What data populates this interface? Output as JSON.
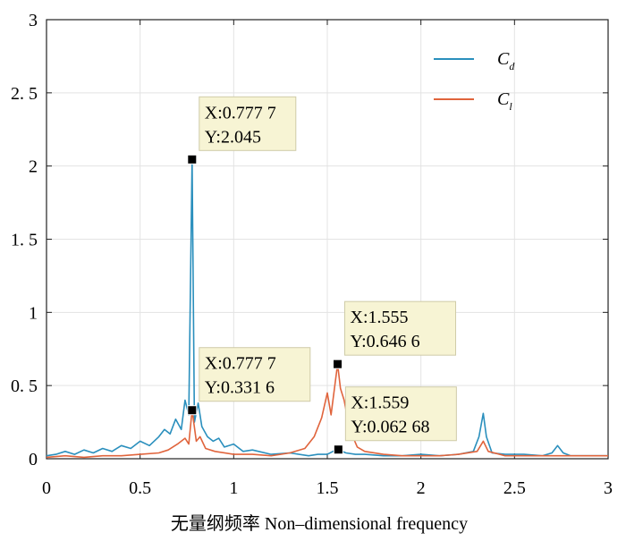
{
  "chart_data": {
    "type": "line",
    "title": "",
    "xlabel": "无量纲频率 Non–dimensional frequency",
    "ylabel": "",
    "xlim": [
      0,
      3
    ],
    "ylim": [
      0,
      3
    ],
    "xticks": [
      0,
      0.5,
      1,
      1.5,
      2,
      2.5,
      3
    ],
    "xtick_labels": [
      "0",
      "0.5",
      "1",
      "1.5",
      "2",
      "2.5",
      "3"
    ],
    "yticks": [
      0,
      0.5,
      1,
      1.5,
      2,
      2.5,
      3
    ],
    "ytick_labels": [
      "0",
      "0. 5",
      "1",
      "1. 5",
      "2",
      "2. 5",
      "3"
    ],
    "grid": true,
    "legend_position": "top-right",
    "series": [
      {
        "name": "Cd",
        "name_main": "C",
        "name_sub": "d",
        "color": "#2a8fbd",
        "x": [
          0,
          0.05,
          0.1,
          0.15,
          0.2,
          0.25,
          0.3,
          0.35,
          0.4,
          0.45,
          0.5,
          0.55,
          0.6,
          0.63,
          0.66,
          0.69,
          0.72,
          0.74,
          0.76,
          0.7777,
          0.79,
          0.81,
          0.83,
          0.86,
          0.89,
          0.92,
          0.95,
          1.0,
          1.05,
          1.1,
          1.2,
          1.3,
          1.4,
          1.45,
          1.5,
          1.53,
          1.559,
          1.58,
          1.6,
          1.65,
          1.7,
          1.8,
          1.9,
          2.0,
          2.1,
          2.2,
          2.28,
          2.31,
          2.333,
          2.35,
          2.38,
          2.45,
          2.55,
          2.65,
          2.7,
          2.73,
          2.76,
          2.8,
          2.9,
          3.0
        ],
        "y": [
          0.02,
          0.03,
          0.05,
          0.03,
          0.06,
          0.04,
          0.07,
          0.05,
          0.09,
          0.07,
          0.12,
          0.09,
          0.15,
          0.2,
          0.17,
          0.27,
          0.2,
          0.4,
          0.3,
          2.045,
          0.25,
          0.38,
          0.22,
          0.15,
          0.12,
          0.14,
          0.08,
          0.1,
          0.05,
          0.06,
          0.03,
          0.04,
          0.02,
          0.03,
          0.03,
          0.05,
          0.06268,
          0.05,
          0.04,
          0.03,
          0.03,
          0.02,
          0.02,
          0.03,
          0.02,
          0.03,
          0.05,
          0.15,
          0.31,
          0.15,
          0.04,
          0.03,
          0.03,
          0.02,
          0.04,
          0.09,
          0.04,
          0.02,
          0.02,
          0.02
        ]
      },
      {
        "name": "Cl",
        "name_main": "C",
        "name_sub": "l",
        "color": "#e0643c",
        "x": [
          0,
          0.1,
          0.2,
          0.3,
          0.4,
          0.5,
          0.6,
          0.65,
          0.7,
          0.74,
          0.76,
          0.7777,
          0.8,
          0.82,
          0.85,
          0.9,
          1.0,
          1.1,
          1.2,
          1.3,
          1.38,
          1.43,
          1.47,
          1.5,
          1.52,
          1.54,
          1.555,
          1.57,
          1.59,
          1.62,
          1.66,
          1.7,
          1.8,
          1.9,
          2.0,
          2.1,
          2.2,
          2.3,
          2.333,
          2.36,
          2.45,
          2.55,
          2.65,
          2.75,
          2.85,
          3.0
        ],
        "y": [
          0.01,
          0.02,
          0.01,
          0.02,
          0.02,
          0.03,
          0.04,
          0.06,
          0.1,
          0.14,
          0.1,
          0.3316,
          0.12,
          0.15,
          0.07,
          0.05,
          0.03,
          0.03,
          0.02,
          0.04,
          0.07,
          0.15,
          0.28,
          0.45,
          0.3,
          0.5,
          0.6466,
          0.48,
          0.4,
          0.2,
          0.08,
          0.05,
          0.03,
          0.02,
          0.02,
          0.02,
          0.03,
          0.05,
          0.12,
          0.05,
          0.02,
          0.02,
          0.02,
          0.02,
          0.02,
          0.02
        ]
      }
    ],
    "annotations": [
      {
        "x": 0.7777,
        "y": 2.045,
        "line1": "X:0.777 7",
        "line2": "Y:2.045",
        "box_dx": 8,
        "box_dy": -70
      },
      {
        "x": 0.7777,
        "y": 0.3316,
        "line1": "X:0.777 7",
        "line2": "Y:0.331 6",
        "box_dx": 8,
        "box_dy": -70
      },
      {
        "x": 1.555,
        "y": 0.6466,
        "line1": "X:1.555",
        "line2": "Y:0.646 6",
        "box_dx": 8,
        "box_dy": -70
      },
      {
        "x": 1.559,
        "y": 0.06268,
        "line1": "X:1.559",
        "line2": "Y:0.062 68",
        "box_dx": 8,
        "box_dy": -70
      }
    ],
    "annotation_box_color": "#f7f4d4"
  }
}
